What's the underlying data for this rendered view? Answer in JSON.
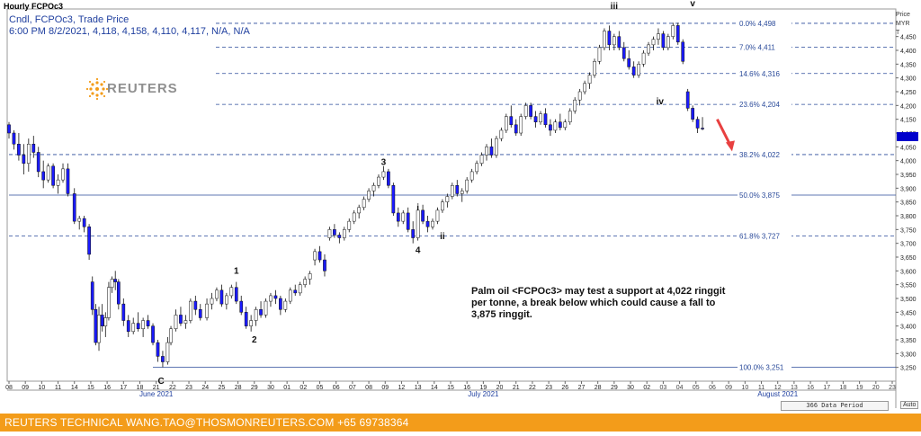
{
  "header": {
    "chart_title": "Hourly FCPOc3",
    "legend_line1": "Cndl, FCPOc3, Trade Price",
    "legend_line2": "6:00 PM 8/2/2021, 4,118, 4,158, 4,110, 4,117, N/A, N/A",
    "units": [
      "Price",
      "MYR",
      "T"
    ]
  },
  "logo": {
    "text": "REUTERS",
    "color": "#f39c1a"
  },
  "annotation": {
    "text": "Palm oil <FCPOc3> may test a support at 4,022 ringgit per tonne, a break below which could cause a fall to 3,875 ringgit."
  },
  "footer": {
    "text": "REUTERS TECHNICAL  WANG.TAO@THOSMONREUTERS.COM  +65 69738364",
    "data_period": "366 Data Period",
    "auto": "Auto"
  },
  "colors": {
    "up_candle": "#ffffff",
    "down_candle": "#1a1aff",
    "fib_line": "#2a4a9a",
    "arrow": "#e84040",
    "accent": "#f39c1a"
  },
  "chart_data": {
    "type": "candlestick",
    "ylim": [
      3200,
      4550
    ],
    "y_ticks": [
      3250,
      3300,
      3350,
      3400,
      3450,
      3500,
      3550,
      3600,
      3650,
      3700,
      3750,
      3800,
      3850,
      3900,
      3950,
      4000,
      4050,
      4100,
      4150,
      4200,
      4250,
      4300,
      4350,
      4400,
      4450
    ],
    "x_ticks": [
      "08",
      "09",
      "10",
      "11",
      "14",
      "15",
      "16",
      "17",
      "18",
      "21",
      "22",
      "23",
      "24",
      "25",
      "28",
      "29",
      "30",
      "01",
      "02",
      "05",
      "06",
      "07",
      "08",
      "09",
      "12",
      "13",
      "14",
      "15",
      "16",
      "19",
      "20",
      "21",
      "22",
      "23",
      "26",
      "27",
      "28",
      "29",
      "30",
      "02",
      "03",
      "04",
      "05",
      "06",
      "09",
      "10",
      "11",
      "12",
      "13",
      "16",
      "17",
      "18",
      "19",
      "20",
      "23"
    ],
    "x_ticks_future_from": 40,
    "month_labels": [
      "June 2021",
      "July 2021",
      "August 2021"
    ],
    "month_label_at": [
      9,
      29,
      47
    ],
    "fibonacci": [
      {
        "label": "0.0%",
        "value": 4498,
        "value_label": "4,498"
      },
      {
        "label": "7.0%",
        "value": 4411,
        "value_label": "4,411"
      },
      {
        "label": "14.6%",
        "value": 4316,
        "value_label": "4,316"
      },
      {
        "label": "23.6%",
        "value": 4204,
        "value_label": "4,204"
      },
      {
        "label": "38.2%",
        "value": 4022,
        "value_label": "4,022"
      },
      {
        "label": "50.0%",
        "value": 3875,
        "value_label": "3,875"
      },
      {
        "label": "61.8%",
        "value": 3727,
        "value_label": "3,727"
      },
      {
        "label": "100.0%",
        "value": 3251,
        "value_label": "3,251"
      }
    ],
    "wave_labels": [
      {
        "label": "C",
        "x": 9.3,
        "y": 3190
      },
      {
        "label": "1",
        "x": 13.9,
        "y": 3590
      },
      {
        "label": "2",
        "x": 15.0,
        "y": 3340
      },
      {
        "label": "3",
        "x": 22.9,
        "y": 3985
      },
      {
        "label": "4",
        "x": 25.0,
        "y": 3665
      },
      {
        "label": "i",
        "x": 25.0,
        "y": 3820
      },
      {
        "label": "ii",
        "x": 26.5,
        "y": 3715
      },
      {
        "label": "iii",
        "x": 37.0,
        "y": 4550
      },
      {
        "label": "iv",
        "x": 39.8,
        "y": 4205
      },
      {
        "label": "v",
        "x": 41.8,
        "y": 4560
      }
    ],
    "arrow": {
      "from": [
        43.3,
        4150
      ],
      "to": [
        44.1,
        4040
      ]
    },
    "last_price": 4117,
    "candles": [
      [
        0.0,
        4130,
        4140,
        4080,
        4100
      ],
      [
        0.3,
        4100,
        4110,
        4040,
        4060
      ],
      [
        0.6,
        4060,
        4100,
        4000,
        4020
      ],
      [
        0.9,
        4020,
        4060,
        3950,
        3990
      ],
      [
        1.2,
        3990,
        4080,
        3960,
        4060
      ],
      [
        1.5,
        4060,
        4090,
        4010,
        4030
      ],
      [
        1.8,
        4030,
        4050,
        3940,
        3960
      ],
      [
        2.1,
        3960,
        4000,
        3900,
        3930
      ],
      [
        2.4,
        3930,
        3990,
        3920,
        3980
      ],
      [
        2.7,
        3980,
        3990,
        3900,
        3910
      ],
      [
        3.0,
        3910,
        3950,
        3880,
        3930
      ],
      [
        3.3,
        3930,
        3990,
        3920,
        3970
      ],
      [
        3.6,
        3970,
        3990,
        3870,
        3880
      ],
      [
        4.0,
        3880,
        3900,
        3770,
        3780
      ],
      [
        4.3,
        3780,
        3800,
        3750,
        3790
      ],
      [
        4.6,
        3790,
        3800,
        3740,
        3760
      ],
      [
        4.9,
        3760,
        3770,
        3640,
        3660
      ],
      [
        5.1,
        3560,
        3580,
        3440,
        3460
      ],
      [
        5.3,
        3460,
        3480,
        3330,
        3340
      ],
      [
        5.5,
        3340,
        3470,
        3310,
        3440
      ],
      [
        5.7,
        3440,
        3480,
        3380,
        3400
      ],
      [
        5.9,
        3400,
        3450,
        3360,
        3430
      ],
      [
        6.1,
        3430,
        3560,
        3420,
        3540
      ],
      [
        6.3,
        3540,
        3580,
        3520,
        3570
      ],
      [
        6.5,
        3570,
        3600,
        3530,
        3560
      ],
      [
        6.7,
        3560,
        3570,
        3460,
        3480
      ],
      [
        7.0,
        3480,
        3500,
        3400,
        3420
      ],
      [
        7.3,
        3420,
        3440,
        3360,
        3380
      ],
      [
        7.6,
        3380,
        3430,
        3370,
        3410
      ],
      [
        7.9,
        3410,
        3450,
        3380,
        3390
      ],
      [
        8.2,
        3390,
        3430,
        3360,
        3420
      ],
      [
        8.5,
        3420,
        3440,
        3390,
        3400
      ],
      [
        8.8,
        3400,
        3410,
        3330,
        3340
      ],
      [
        9.1,
        3340,
        3350,
        3270,
        3290
      ],
      [
        9.4,
        3290,
        3310,
        3250,
        3270
      ],
      [
        9.7,
        3270,
        3360,
        3260,
        3340
      ],
      [
        9.9,
        3340,
        3400,
        3330,
        3390
      ],
      [
        10.2,
        3390,
        3460,
        3380,
        3440
      ],
      [
        10.5,
        3440,
        3470,
        3400,
        3410
      ],
      [
        10.8,
        3410,
        3440,
        3390,
        3420
      ],
      [
        11.1,
        3420,
        3500,
        3410,
        3490
      ],
      [
        11.4,
        3490,
        3510,
        3440,
        3460
      ],
      [
        11.7,
        3460,
        3480,
        3420,
        3430
      ],
      [
        12.1,
        3430,
        3500,
        3420,
        3480
      ],
      [
        12.4,
        3480,
        3520,
        3460,
        3500
      ],
      [
        12.7,
        3500,
        3540,
        3490,
        3530
      ],
      [
        13.0,
        3530,
        3550,
        3470,
        3480
      ],
      [
        13.3,
        3480,
        3520,
        3460,
        3510
      ],
      [
        13.6,
        3510,
        3550,
        3500,
        3540
      ],
      [
        13.9,
        3540,
        3560,
        3480,
        3490
      ],
      [
        14.2,
        3490,
        3510,
        3440,
        3450
      ],
      [
        14.5,
        3450,
        3470,
        3390,
        3400
      ],
      [
        14.8,
        3400,
        3440,
        3380,
        3420
      ],
      [
        15.1,
        3420,
        3470,
        3400,
        3460
      ],
      [
        15.4,
        3460,
        3490,
        3430,
        3440
      ],
      [
        15.7,
        3440,
        3500,
        3430,
        3490
      ],
      [
        16.0,
        3490,
        3520,
        3470,
        3510
      ],
      [
        16.3,
        3510,
        3530,
        3480,
        3500
      ],
      [
        16.6,
        3500,
        3510,
        3440,
        3460
      ],
      [
        16.9,
        3460,
        3500,
        3450,
        3490
      ],
      [
        17.2,
        3490,
        3540,
        3480,
        3530
      ],
      [
        17.5,
        3530,
        3550,
        3510,
        3520
      ],
      [
        17.8,
        3520,
        3560,
        3510,
        3550
      ],
      [
        18.1,
        3550,
        3580,
        3540,
        3570
      ],
      [
        18.4,
        3570,
        3600,
        3550,
        3590
      ],
      [
        18.7,
        3640,
        3680,
        3620,
        3670
      ],
      [
        19.0,
        3670,
        3690,
        3630,
        3640
      ],
      [
        19.3,
        3640,
        3660,
        3580,
        3600
      ],
      [
        19.6,
        3720,
        3760,
        3710,
        3750
      ],
      [
        19.9,
        3750,
        3770,
        3720,
        3730
      ],
      [
        20.2,
        3730,
        3740,
        3700,
        3720
      ],
      [
        20.5,
        3720,
        3760,
        3710,
        3750
      ],
      [
        20.8,
        3750,
        3790,
        3740,
        3780
      ],
      [
        21.1,
        3780,
        3820,
        3770,
        3810
      ],
      [
        21.4,
        3810,
        3840,
        3790,
        3830
      ],
      [
        21.7,
        3830,
        3870,
        3820,
        3860
      ],
      [
        22.0,
        3860,
        3900,
        3850,
        3890
      ],
      [
        22.3,
        3890,
        3920,
        3870,
        3910
      ],
      [
        22.6,
        3910,
        3950,
        3900,
        3940
      ],
      [
        22.9,
        3940,
        3980,
        3930,
        3960
      ],
      [
        23.2,
        3960,
        3970,
        3900,
        3910
      ],
      [
        23.5,
        3910,
        3920,
        3800,
        3810
      ],
      [
        23.8,
        3810,
        3830,
        3760,
        3780
      ],
      [
        24.1,
        3780,
        3820,
        3770,
        3810
      ],
      [
        24.4,
        3810,
        3830,
        3740,
        3750
      ],
      [
        24.7,
        3750,
        3780,
        3700,
        3720
      ],
      [
        25.0,
        3720,
        3830,
        3710,
        3820
      ],
      [
        25.3,
        3820,
        3840,
        3770,
        3780
      ],
      [
        25.6,
        3780,
        3800,
        3740,
        3760
      ],
      [
        25.9,
        3760,
        3790,
        3750,
        3780
      ],
      [
        26.2,
        3780,
        3830,
        3770,
        3820
      ],
      [
        26.5,
        3820,
        3860,
        3810,
        3850
      ],
      [
        26.8,
        3850,
        3880,
        3830,
        3870
      ],
      [
        27.1,
        3870,
        3920,
        3860,
        3910
      ],
      [
        27.4,
        3910,
        3930,
        3870,
        3880
      ],
      [
        27.7,
        3880,
        3900,
        3850,
        3890
      ],
      [
        28.0,
        3890,
        3940,
        3880,
        3930
      ],
      [
        28.3,
        3930,
        3970,
        3920,
        3960
      ],
      [
        28.6,
        3960,
        4000,
        3950,
        3990
      ],
      [
        28.9,
        3990,
        4030,
        3980,
        4020
      ],
      [
        29.2,
        4020,
        4060,
        4000,
        4050
      ],
      [
        29.5,
        4050,
        4080,
        4010,
        4020
      ],
      [
        29.8,
        4020,
        4090,
        4010,
        4080
      ],
      [
        30.1,
        4080,
        4120,
        4070,
        4110
      ],
      [
        30.4,
        4110,
        4170,
        4100,
        4160
      ],
      [
        30.7,
        4160,
        4200,
        4120,
        4130
      ],
      [
        31.0,
        4130,
        4150,
        4090,
        4100
      ],
      [
        31.3,
        4100,
        4170,
        4090,
        4160
      ],
      [
        31.6,
        4160,
        4210,
        4150,
        4200
      ],
      [
        31.9,
        4200,
        4210,
        4150,
        4160
      ],
      [
        32.2,
        4160,
        4180,
        4120,
        4140
      ],
      [
        32.5,
        4140,
        4180,
        4130,
        4170
      ],
      [
        32.8,
        4170,
        4190,
        4120,
        4130
      ],
      [
        33.1,
        4130,
        4150,
        4090,
        4110
      ],
      [
        33.4,
        4110,
        4150,
        4100,
        4140
      ],
      [
        33.7,
        4140,
        4170,
        4110,
        4120
      ],
      [
        34.0,
        4120,
        4150,
        4110,
        4140
      ],
      [
        34.3,
        4140,
        4190,
        4130,
        4180
      ],
      [
        34.6,
        4180,
        4230,
        4170,
        4220
      ],
      [
        34.9,
        4220,
        4260,
        4200,
        4250
      ],
      [
        35.2,
        4250,
        4290,
        4240,
        4280
      ],
      [
        35.5,
        4280,
        4320,
        4260,
        4310
      ],
      [
        35.8,
        4310,
        4370,
        4300,
        4360
      ],
      [
        36.1,
        4360,
        4420,
        4350,
        4410
      ],
      [
        36.4,
        4410,
        4480,
        4400,
        4470
      ],
      [
        36.7,
        4470,
        4490,
        4400,
        4420
      ],
      [
        37.0,
        4420,
        4460,
        4400,
        4450
      ],
      [
        37.3,
        4450,
        4470,
        4400,
        4410
      ],
      [
        37.6,
        4410,
        4430,
        4360,
        4370
      ],
      [
        37.9,
        4370,
        4400,
        4330,
        4340
      ],
      [
        38.2,
        4340,
        4360,
        4300,
        4310
      ],
      [
        38.5,
        4310,
        4360,
        4300,
        4350
      ],
      [
        38.8,
        4350,
        4400,
        4340,
        4390
      ],
      [
        39.1,
        4390,
        4430,
        4380,
        4420
      ],
      [
        39.4,
        4420,
        4450,
        4400,
        4440
      ],
      [
        39.7,
        4440,
        4480,
        4420,
        4460
      ],
      [
        40.0,
        4460,
        4470,
        4400,
        4410
      ],
      [
        40.3,
        4410,
        4460,
        4400,
        4450
      ],
      [
        40.6,
        4450,
        4500,
        4440,
        4490
      ],
      [
        40.9,
        4490,
        4500,
        4420,
        4430
      ],
      [
        41.2,
        4430,
        4440,
        4350,
        4360
      ],
      [
        41.5,
        4250,
        4260,
        4180,
        4190
      ],
      [
        41.8,
        4190,
        4200,
        4140,
        4150
      ],
      [
        42.1,
        4150,
        4160,
        4100,
        4118
      ],
      [
        42.4,
        4118,
        4158,
        4110,
        4117
      ]
    ]
  }
}
